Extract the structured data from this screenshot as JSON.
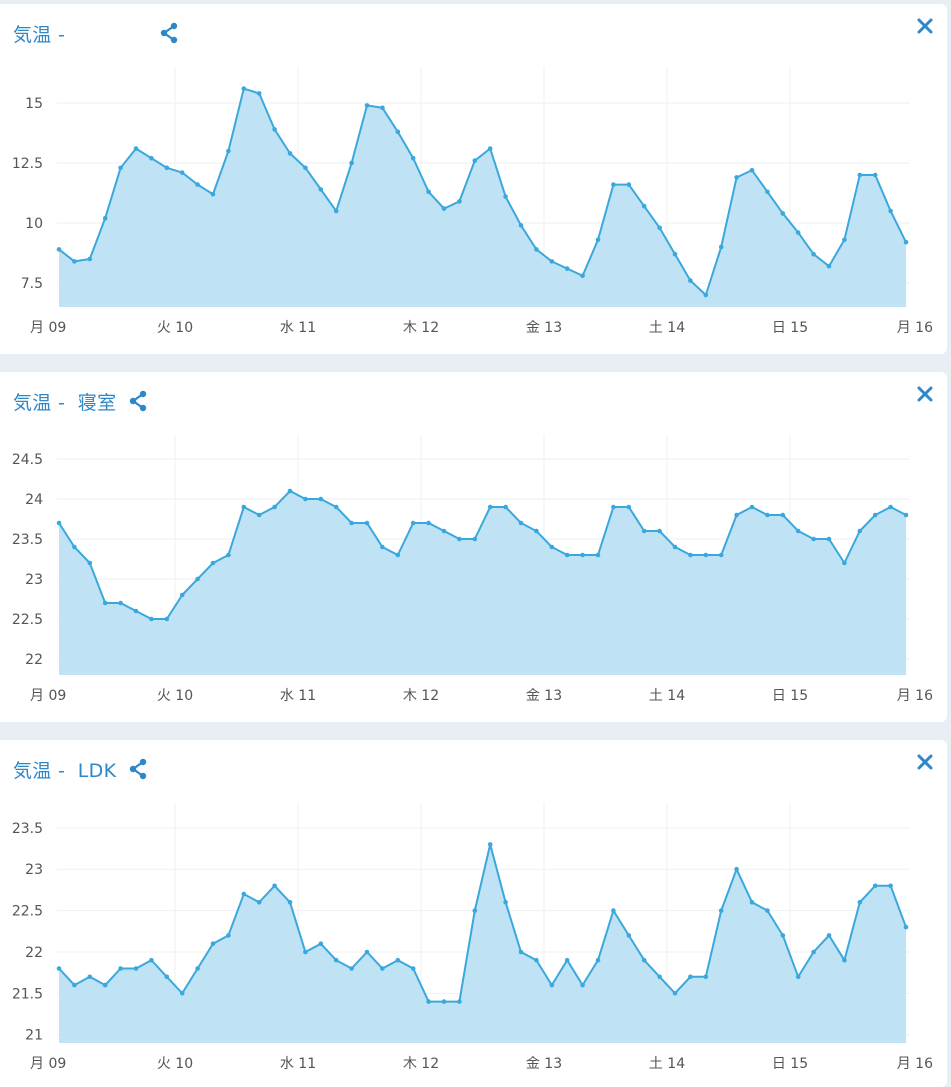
{
  "colors": {
    "line": "#3aa8dc",
    "fill": "#bfe3f5",
    "title": "#2c88c8",
    "icon": "#2c88c8"
  },
  "icons": {
    "share": "share-icon",
    "close": "close-icon"
  },
  "charts": [
    {
      "title": "気温 -",
      "chart_data": {
        "type": "area",
        "x_tick_labels": [
          "月 09",
          "火 10",
          "水 11",
          "木 12",
          "金 13",
          "土 14",
          "日 15",
          "月 16"
        ],
        "y_tick_labels": [
          "7.5",
          "10",
          "12.5",
          "15"
        ],
        "y_ticks": [
          7.5,
          10,
          12.5,
          15
        ],
        "ylim": [
          6.5,
          16.5
        ],
        "grid": true,
        "series": [
          {
            "values": [
              8.9,
              8.4,
              8.5,
              10.2,
              12.3,
              13.1,
              12.7,
              12.3,
              12.1,
              11.6,
              11.2,
              13.0,
              15.6,
              15.4,
              13.9,
              12.9,
              12.3,
              11.4,
              10.5,
              12.5,
              14.9,
              14.8,
              13.8,
              12.7,
              11.3,
              10.6,
              10.9,
              12.6,
              13.1,
              11.1,
              9.9,
              8.9,
              8.4,
              8.1,
              7.8,
              9.3,
              11.6,
              11.6,
              10.7,
              9.8,
              8.7,
              7.6,
              7.0,
              9.0,
              11.9,
              12.2,
              11.3,
              10.4,
              9.6,
              8.7,
              8.2,
              9.3,
              12.0,
              12.0,
              10.5,
              9.2
            ]
          }
        ]
      }
    },
    {
      "title": "気温 -  寝室",
      "chart_data": {
        "type": "area",
        "x_tick_labels": [
          "月 09",
          "火 10",
          "水 11",
          "木 12",
          "金 13",
          "土 14",
          "日 15",
          "月 16"
        ],
        "y_tick_labels": [
          "22",
          "22.5",
          "23",
          "23.5",
          "24",
          "24.5"
        ],
        "y_ticks": [
          22,
          22.5,
          23,
          23.5,
          24,
          24.5
        ],
        "ylim": [
          21.8,
          24.8
        ],
        "grid": true,
        "series": [
          {
            "values": [
              23.7,
              23.4,
              23.2,
              22.7,
              22.7,
              22.6,
              22.5,
              22.5,
              22.8,
              23.0,
              23.2,
              23.3,
              23.9,
              23.8,
              23.9,
              24.1,
              24.0,
              24.0,
              23.9,
              23.7,
              23.7,
              23.4,
              23.3,
              23.7,
              23.7,
              23.6,
              23.5,
              23.5,
              23.9,
              23.9,
              23.7,
              23.6,
              23.4,
              23.3,
              23.3,
              23.3,
              23.9,
              23.9,
              23.6,
              23.6,
              23.4,
              23.3,
              23.3,
              23.3,
              23.8,
              23.9,
              23.8,
              23.8,
              23.6,
              23.5,
              23.5,
              23.2,
              23.6,
              23.8,
              23.9,
              23.8
            ]
          }
        ]
      }
    },
    {
      "title": "気温 -  LDK",
      "chart_data": {
        "type": "area",
        "x_tick_labels": [
          "月 09",
          "火 10",
          "水 11",
          "木 12",
          "金 13",
          "土 14",
          "日 15",
          "月 16"
        ],
        "y_tick_labels": [
          "21",
          "21.5",
          "22",
          "22.5",
          "23",
          "23.5"
        ],
        "y_ticks": [
          21,
          21.5,
          22,
          22.5,
          23,
          23.5
        ],
        "ylim": [
          20.9,
          23.8
        ],
        "grid": true,
        "series": [
          {
            "values": [
              21.8,
              21.6,
              21.7,
              21.6,
              21.8,
              21.8,
              21.9,
              21.7,
              21.5,
              21.8,
              22.1,
              22.2,
              22.7,
              22.6,
              22.8,
              22.6,
              22.0,
              22.1,
              21.9,
              21.8,
              22.0,
              21.8,
              21.9,
              21.8,
              21.4,
              21.4,
              21.4,
              22.5,
              23.3,
              22.6,
              22.0,
              21.9,
              21.6,
              21.9,
              21.6,
              21.9,
              22.5,
              22.2,
              21.9,
              21.7,
              21.5,
              21.7,
              21.7,
              22.5,
              23.0,
              22.6,
              22.5,
              22.2,
              21.7,
              22.0,
              22.2,
              21.9,
              22.6,
              22.8,
              22.8,
              22.3
            ]
          }
        ]
      }
    }
  ]
}
